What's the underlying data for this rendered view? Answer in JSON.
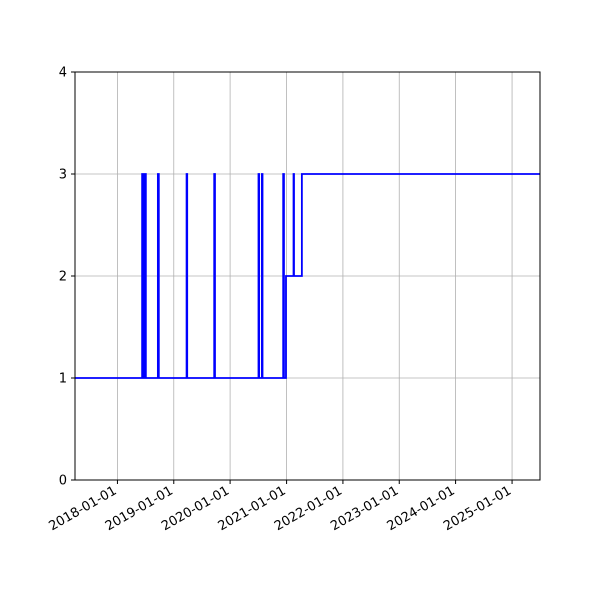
{
  "chart_data": {
    "type": "line",
    "title": "",
    "xlabel": "",
    "ylabel": "",
    "x_type": "date",
    "xlim": [
      "2017-04-01",
      "2025-07-01"
    ],
    "ylim": [
      0,
      4
    ],
    "grid": true,
    "x_ticks": [
      "2018-01-01",
      "2019-01-01",
      "2020-01-01",
      "2021-01-01",
      "2022-01-01",
      "2023-01-01",
      "2024-01-01",
      "2025-01-01"
    ],
    "y_ticks": [
      0,
      1,
      2,
      3,
      4
    ],
    "series": [
      {
        "name": "",
        "color": "#0000ff",
        "step": "post",
        "x": [
          "2017-04-01",
          "2018-06-10",
          "2018-06-12",
          "2018-06-14",
          "2018-06-16",
          "2018-06-18",
          "2018-06-20",
          "2018-06-22",
          "2018-06-25",
          "2018-07-01",
          "2018-07-04",
          "2018-07-08",
          "2018-09-20",
          "2018-09-26",
          "2019-03-25",
          "2019-03-29",
          "2019-09-20",
          "2019-09-25",
          "2020-07-03",
          "2020-07-07",
          "2020-07-25",
          "2020-07-29",
          "2020-12-10",
          "2020-12-15",
          "2020-12-28",
          "2021-02-15",
          "2021-02-18",
          "2021-04-10",
          "2025-07-01"
        ],
        "y": [
          1,
          3,
          1,
          3,
          1,
          3,
          1,
          3,
          1,
          3,
          1,
          1,
          3,
          1,
          3,
          1,
          3,
          1,
          3,
          1,
          3,
          1,
          3,
          1,
          2,
          3,
          2,
          3,
          3
        ]
      }
    ]
  }
}
